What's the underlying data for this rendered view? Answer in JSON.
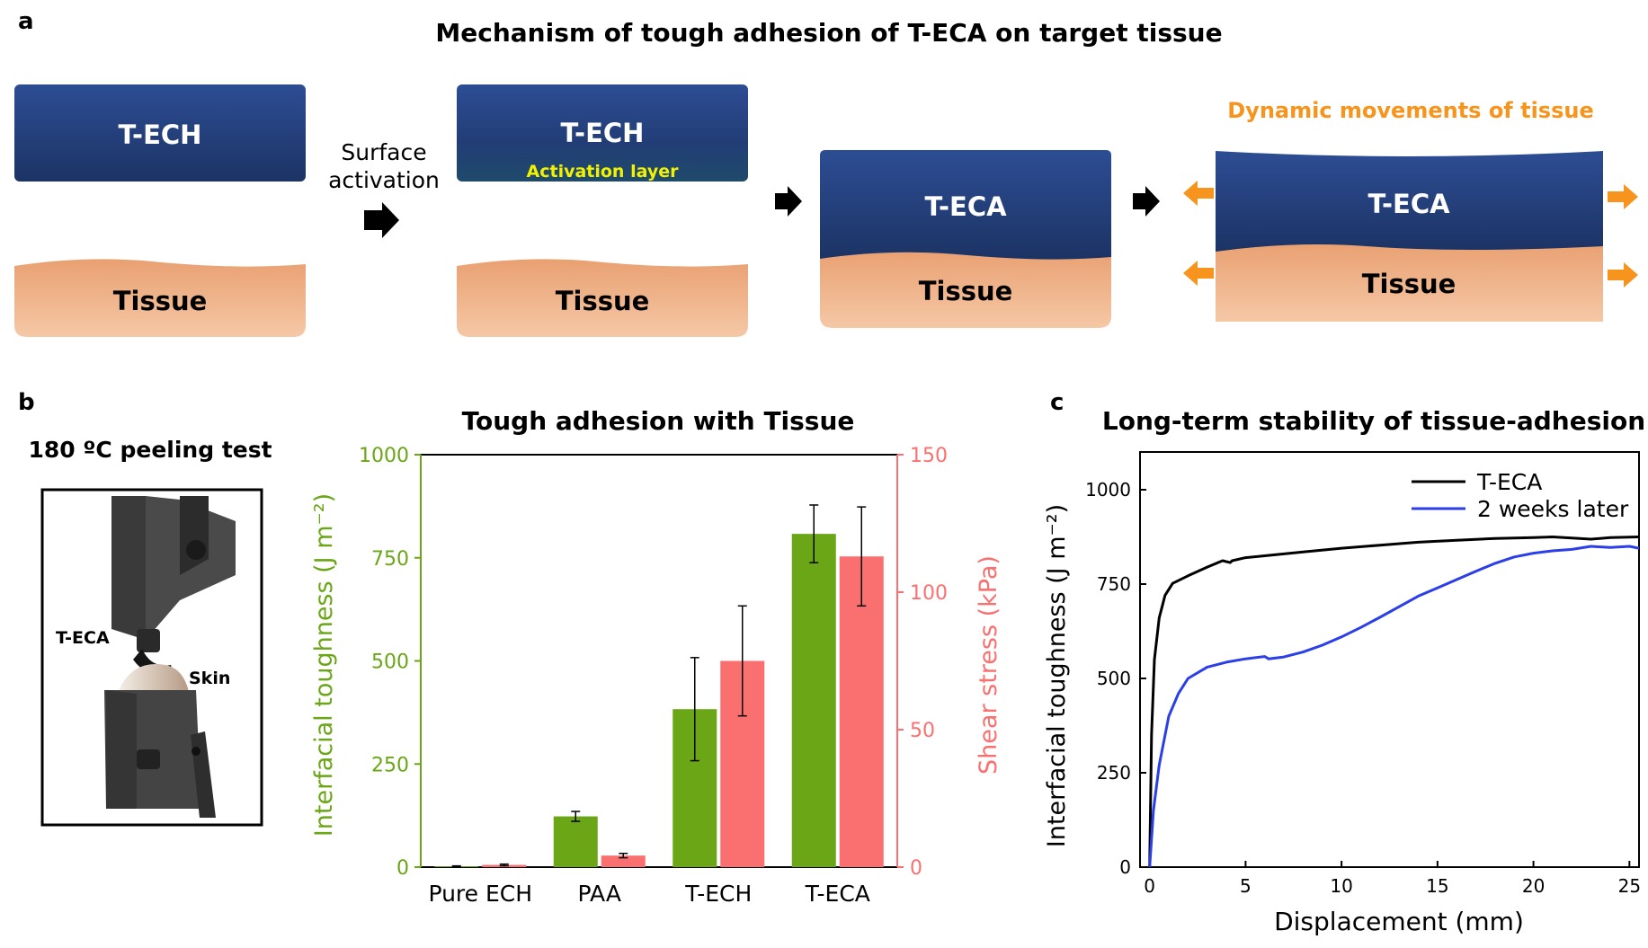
{
  "panel_a": {
    "letter": "a",
    "title": "Mechanism of tough adhesion of T-ECA on target tissue",
    "step_label_line1": "Surface",
    "step_label_line2": "activation",
    "gel_1": "T-ECH",
    "gel_2": "T-ECH",
    "activation_layer": "Activation layer",
    "gel_3": "T-ECA",
    "gel_4": "T-ECA",
    "tissue": "Tissue",
    "dynamic_label": "Dynamic movements of tissue",
    "colors": {
      "gel": "#2a4a8c",
      "gel_dark": "#1d3466",
      "tissue": "#eca57a",
      "tissue_light": "#f6caa8",
      "arrow_orange": "#f7941d",
      "activation_text": "#f2f200"
    }
  },
  "panel_b": {
    "letter": "b",
    "photo_title": "180 ºC peeling test",
    "photo_label_gel": "T-ECA",
    "photo_label_skin": "Skin",
    "chart_data": {
      "type": "bar",
      "title": "Tough adhesion with Tissue",
      "categories": [
        "Pure ECH",
        "PAA",
        "T-ECH",
        "T-ECA"
      ],
      "ylabel": "Interfacial toughness (J m⁻²)",
      "ylim": [
        0,
        1000
      ],
      "yticks": [
        "0",
        "250",
        "500",
        "750",
        "1000"
      ],
      "y2label": "Shear stress (kPa)",
      "y2lim": [
        0,
        150
      ],
      "y2ticks": [
        "0",
        "50",
        "100",
        "150"
      ],
      "series": [
        {
          "axis": "left",
          "color": "#6aa616",
          "values": [
            2,
            123,
            383,
            808
          ],
          "errors": [
            1,
            12,
            125,
            70
          ]
        },
        {
          "axis": "right",
          "color": "#fa7070",
          "values": [
            0.8,
            4.2,
            75,
            113
          ],
          "errors": [
            0.3,
            0.8,
            20,
            18
          ]
        }
      ]
    }
  },
  "panel_c": {
    "letter": "c",
    "chart_data": {
      "type": "line",
      "title": "Long-term stability of tissue-adhesion",
      "xlabel": "Displacement (mm)",
      "ylabel": "Interfacial toughness (J m⁻²)",
      "xlim": [
        -0.5,
        25.5
      ],
      "ylim": [
        0,
        1100
      ],
      "xticks": [
        "0",
        "5",
        "10",
        "15",
        "20",
        "25"
      ],
      "yticks": [
        "0",
        "250",
        "500",
        "750",
        "1000"
      ],
      "legend": "top-right",
      "series": [
        {
          "name": "T-ECA",
          "color": "#000000",
          "x": [
            0,
            0.1,
            0.25,
            0.5,
            0.8,
            1.2,
            2,
            3,
            3.8,
            4.2,
            4.3,
            5,
            6,
            8,
            10,
            12,
            14,
            16,
            18,
            20,
            21,
            22,
            23,
            24,
            25.5
          ],
          "y": [
            0,
            350,
            550,
            660,
            720,
            752,
            772,
            795,
            812,
            807,
            812,
            820,
            825,
            835,
            845,
            853,
            861,
            866,
            871,
            873,
            875,
            872,
            869,
            873,
            875
          ]
        },
        {
          "name": "2 weeks later",
          "color": "#2b3fe8",
          "x": [
            0,
            0.2,
            0.5,
            1,
            1.5,
            2,
            3,
            4,
            5,
            6,
            6.2,
            7,
            8,
            9,
            10,
            11,
            12,
            13,
            14,
            15,
            16,
            17,
            18,
            19,
            20,
            21,
            22,
            23,
            24,
            25,
            25.5
          ],
          "y": [
            0,
            150,
            270,
            400,
            460,
            500,
            530,
            543,
            552,
            558,
            552,
            557,
            570,
            588,
            610,
            635,
            662,
            690,
            718,
            740,
            762,
            784,
            805,
            822,
            832,
            838,
            842,
            850,
            847,
            850,
            845
          ]
        }
      ]
    }
  }
}
